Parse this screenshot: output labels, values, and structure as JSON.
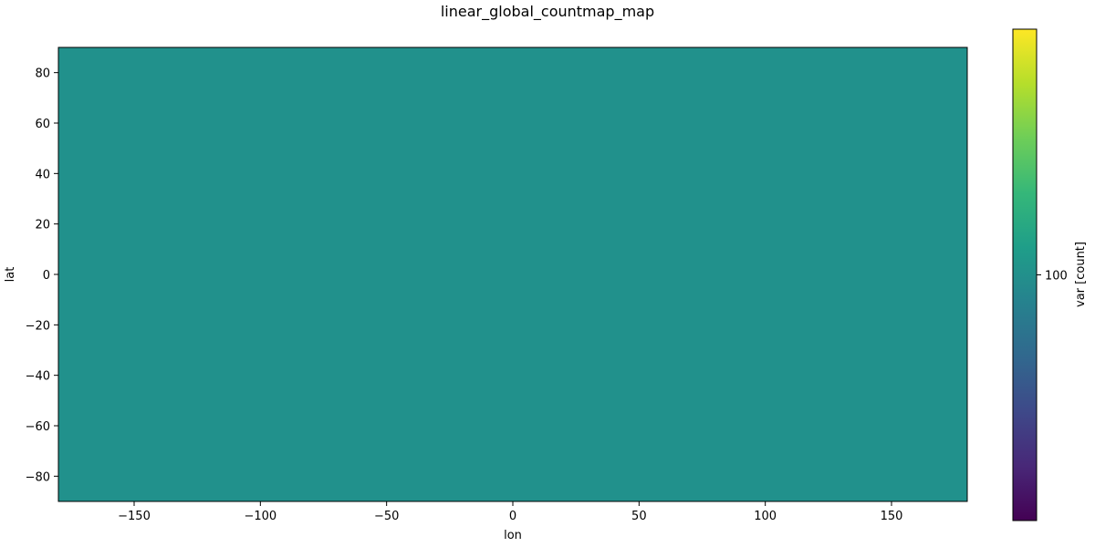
{
  "chart_data": {
    "type": "heatmap",
    "title": "linear_global_countmap_map",
    "xlabel": "lon",
    "ylabel": "lat",
    "xlim": [
      -180,
      180
    ],
    "ylim": [
      -90,
      90
    ],
    "xticks": [
      -150,
      -100,
      -50,
      0,
      50,
      100,
      150
    ],
    "yticks": [
      -80,
      -60,
      -40,
      -20,
      0,
      20,
      40,
      60,
      80
    ],
    "xtick_labels": [
      "−150",
      "−100",
      "−50",
      "0",
      "50",
      "100",
      "150"
    ],
    "ytick_labels": [
      "−80",
      "−60",
      "−40",
      "−20",
      "0",
      "20",
      "40",
      "60",
      "80"
    ],
    "field_value": 100,
    "field_color": "#21918c",
    "grid": false,
    "colorbar": {
      "label": "var [count]",
      "ticks": [
        100
      ],
      "tick_labels": [
        "100"
      ],
      "colormap": "viridis",
      "colors": [
        "#440154",
        "#482878",
        "#3e4989",
        "#31688e",
        "#26828e",
        "#1f9e89",
        "#35b779",
        "#6ece58",
        "#b5de2b",
        "#fde725"
      ]
    }
  }
}
